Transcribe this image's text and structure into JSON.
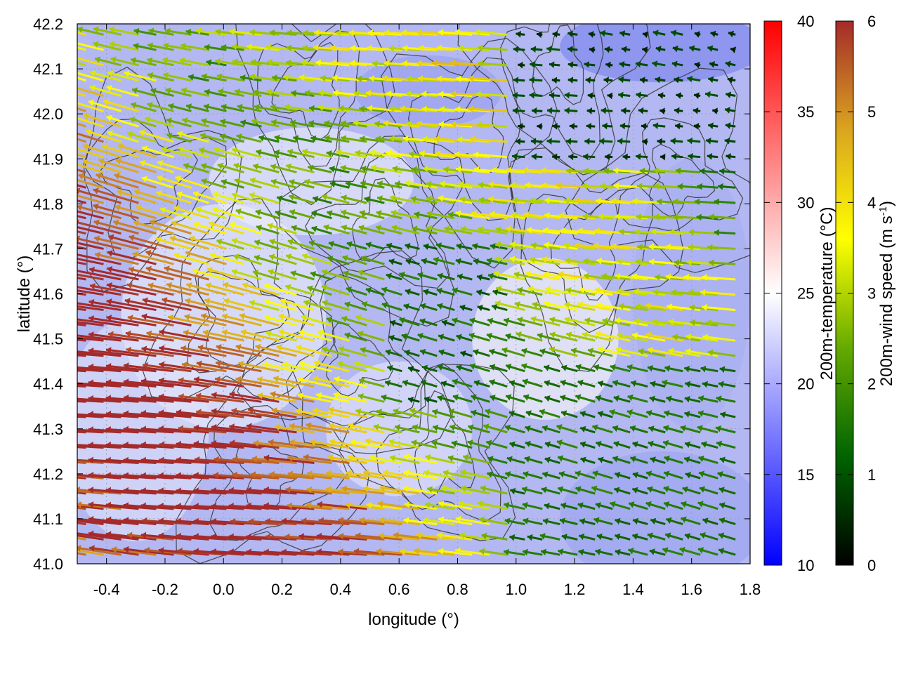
{
  "chart_data": {
    "type": "heatmap",
    "overlay": "vector-field with contour lines",
    "xlabel": "longitude (°)",
    "ylabel": "latitude (°)",
    "xlim": [
      -0.5,
      1.8
    ],
    "ylim": [
      41.0,
      42.2
    ],
    "x_ticks": [
      "-0.4",
      "-0.2",
      "0.0",
      "0.2",
      "0.4",
      "0.6",
      "0.8",
      "1.0",
      "1.2",
      "1.4",
      "1.6",
      "1.8"
    ],
    "y_ticks": [
      "41.0",
      "41.1",
      "41.2",
      "41.3",
      "41.4",
      "41.5",
      "41.6",
      "41.7",
      "41.8",
      "41.9",
      "42.0",
      "42.1",
      "42.2"
    ],
    "grid": true,
    "temperature_colorbar": {
      "label": "200m-temperature (°C)",
      "range": [
        10,
        40
      ],
      "ticks": [
        "10",
        "15",
        "20",
        "25",
        "30",
        "35",
        "40"
      ],
      "colors": [
        "#0000ff",
        "#ffffff",
        "#ff0000"
      ]
    },
    "wind_colorbar": {
      "label": "200m-wind speed (m s-1)",
      "label_main": "200m-wind speed (m s",
      "label_sup": "-1",
      "label_end": ")",
      "range": [
        0,
        6
      ],
      "ticks": [
        "0",
        "1",
        "2",
        "3",
        "4",
        "5",
        "6"
      ],
      "colors": [
        "#000000",
        "#006400",
        "#66aa00",
        "#ffff00",
        "#daa520",
        "#a52a2a"
      ]
    },
    "wind_field_summary": {
      "direction": "predominantly easterly (arrows pointing west)",
      "strong_wind_region": "west and south-west, speeds above 5 m s-1",
      "weak_wind_region": "north-east, speeds below 2 m s-1"
    }
  }
}
